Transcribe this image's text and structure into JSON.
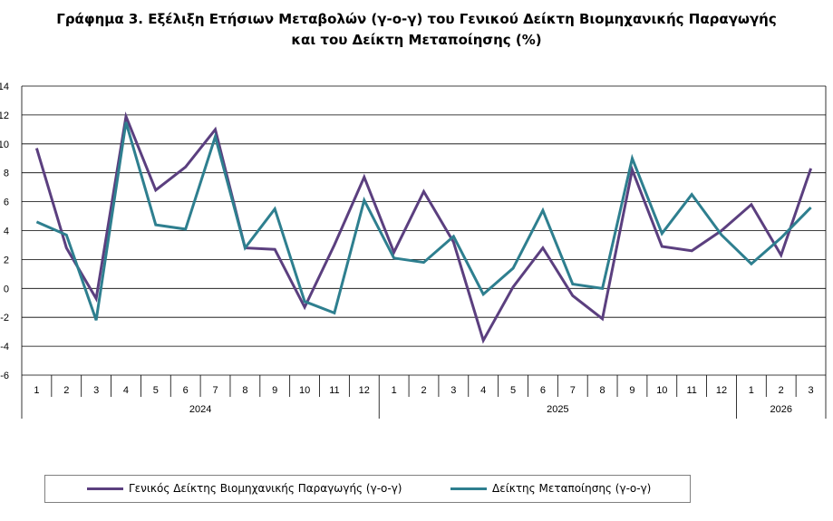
{
  "chart_data": {
    "type": "line",
    "title_line1": "Γράφημα 3. Εξέλιξη Ετήσιων Μεταβολών (γ-ο-γ) του Γενικού Δείκτη Βιομηχανικής Παραγωγής",
    "title_line2": "και του Δείκτη Μεταποίησης (%)",
    "months": [
      "1",
      "2",
      "3",
      "4",
      "5",
      "6",
      "7",
      "8",
      "9",
      "10",
      "11",
      "12",
      "1",
      "2",
      "3",
      "4",
      "5",
      "6",
      "7",
      "8",
      "9",
      "10",
      "11",
      "12",
      "1",
      "2",
      "3"
    ],
    "years": [
      {
        "label": "2024",
        "start": 0,
        "count": 12
      },
      {
        "label": "2025",
        "start": 12,
        "count": 12
      },
      {
        "label": "2026",
        "start": 24,
        "count": 3
      }
    ],
    "ylim": [
      -6,
      14
    ],
    "yticks": [
      -6,
      -4,
      -2,
      0,
      2,
      4,
      6,
      8,
      10,
      12,
      14
    ],
    "grid": true,
    "legend_position": "bottom",
    "series": [
      {
        "name": "Γενικός Δείκτης Βιομηχανικής Παραγωγής (γ-ο-γ)",
        "color": "#5b3f7f",
        "values": [
          9.7,
          2.8,
          -0.7,
          11.9,
          6.8,
          8.4,
          11.0,
          2.8,
          2.7,
          -1.3,
          3.0,
          7.7,
          2.5,
          6.7,
          3.2,
          -3.6,
          0.1,
          2.8,
          -0.5,
          -2.1,
          8.2,
          2.9,
          2.6,
          4.0,
          5.8,
          2.3,
          8.3
        ]
      },
      {
        "name": "Δείκτης Μεταποίησης (γ-ο-γ)",
        "color": "#2e7f8f",
        "values": [
          4.6,
          3.7,
          -2.2,
          11.5,
          4.4,
          4.1,
          10.5,
          2.8,
          5.5,
          -0.9,
          -1.7,
          6.1,
          2.1,
          1.8,
          3.6,
          -0.4,
          1.4,
          5.4,
          0.3,
          0.0,
          9.0,
          3.8,
          6.5,
          3.7,
          1.7,
          3.5,
          5.6
        ]
      }
    ]
  }
}
